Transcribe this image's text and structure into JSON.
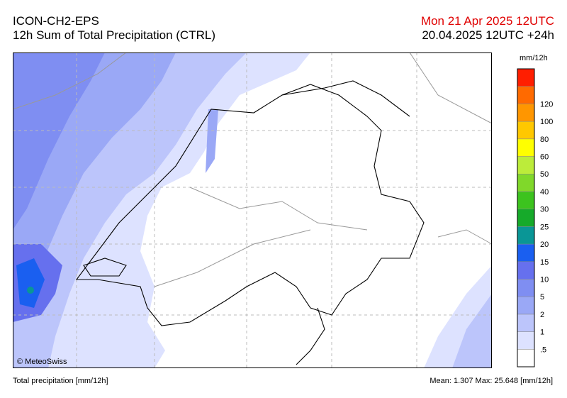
{
  "header": {
    "model": "ICON-CH2-EPS",
    "title": "12h Sum of Total Precipitation (CTRL)",
    "valid": "Mon 21 Apr 2025 12UTC",
    "run": "20.04.2025 12UTC +24h"
  },
  "legend": {
    "unit": "mm/12h",
    "labels": [
      ".5",
      "1",
      "2",
      "5",
      "10",
      "15",
      "20",
      "25",
      "30",
      "40",
      "50",
      "60",
      "80",
      "100",
      "120"
    ],
    "colors": [
      "#ffffff",
      "#dde2ff",
      "#bcc5fb",
      "#9aa8f6",
      "#7f8ef2",
      "#6670ee",
      "#1a5ff0",
      "#0a9696",
      "#16aa2a",
      "#3cc31e",
      "#80d82a",
      "#bcec3a",
      "#ffff00",
      "#ffc800",
      "#ff9600",
      "#ff6a00",
      "#ff1e00"
    ]
  },
  "map": {
    "credit": "© MeteoSwiss"
  },
  "footer": {
    "left": "Total precipitation [mm/12h]",
    "right": "Mean:  1.307 Max: 25.648 [mm/12h]"
  }
}
